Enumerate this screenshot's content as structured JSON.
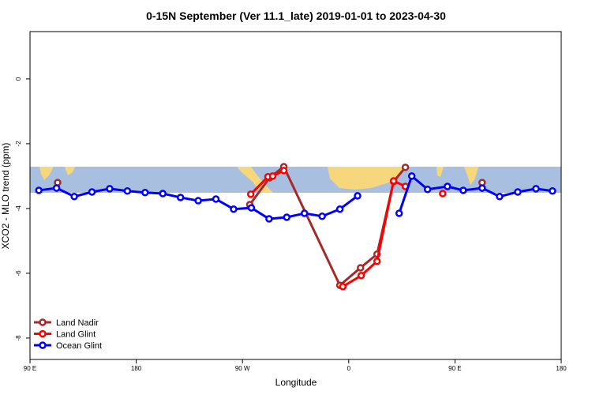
{
  "chart_data": {
    "type": "line",
    "title": "0-15N September (Ver 11.1_late)   2019-01-01 to 2023-04-30",
    "x_label": "Longitude",
    "y_label": "XCO2 - MLO trend (ppm)",
    "xlim": [
      90,
      540
    ],
    "ylim": [
      -8.66,
      1.46
    ],
    "xticks": [
      {
        "value": 90,
        "label": "90 E"
      },
      180,
      {
        "value": 270,
        "label": "90 W"
      },
      {
        "value": 360,
        "label": "0"
      },
      {
        "value": 450,
        "label": "90 E"
      },
      {
        "value": 540,
        "label": "180"
      }
    ],
    "yticks": [
      0,
      -2,
      -4,
      -6,
      -8
    ],
    "legend": "bottom-left",
    "series": [
      {
        "name": "Land Nadir",
        "color": "#a52a2a",
        "x": [
          113.4,
          null,
          276.2,
          293,
          305,
          352.5,
          370,
          384,
          398,
          408,
          null,
          473
        ],
        "values": [
          -3.2,
          null,
          -3.88,
          -3.05,
          -2.71,
          -6.37,
          -5.83,
          -5.41,
          -3.17,
          -2.73,
          null,
          -3.2
        ]
      },
      {
        "name": "Land Glint",
        "color": "#ff0000",
        "x": [
          277,
          291.6,
          295.6,
          305,
          null,
          355,
          370.6,
          384,
          398,
          408,
          null,
          439.6
        ],
        "values": [
          -3.56,
          -3.02,
          -3.0,
          -2.83,
          null,
          -6.41,
          -6.07,
          -5.63,
          -3.15,
          -3.32,
          null,
          -3.54
        ]
      },
      {
        "name": "Ocean Glint",
        "color": "#0000ff",
        "x": [
          97.5,
          112.5,
          127.5,
          142.5,
          157.5,
          172.5,
          187.5,
          202.5,
          217.5,
          232.5,
          247.5,
          262.5,
          277.5,
          292.5,
          307.5,
          322.5,
          337.5,
          352.5,
          367.5,
          null,
          402.7,
          413.4,
          426.8,
          443.6,
          457,
          473,
          487.8,
          503.2,
          518.6,
          532.6
        ],
        "values": [
          -3.44,
          -3.37,
          -3.63,
          -3.49,
          -3.39,
          -3.46,
          -3.51,
          -3.54,
          -3.66,
          -3.76,
          -3.71,
          -4.02,
          -3.98,
          -4.32,
          -4.27,
          -4.15,
          -4.24,
          -4.02,
          -3.61,
          null,
          -4.15,
          -3.0,
          -3.41,
          -3.32,
          -3.44,
          -3.37,
          -3.63,
          -3.49,
          -3.39,
          -3.46
        ]
      }
    ]
  }
}
